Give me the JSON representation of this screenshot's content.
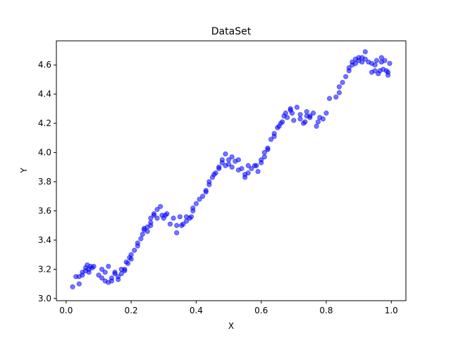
{
  "chart_data": {
    "type": "scatter",
    "title": "DataSet",
    "xlabel": "X",
    "ylabel": "Y",
    "xlim": [
      -0.03,
      1.045
    ],
    "ylim": [
      2.985,
      4.765
    ],
    "x_ticks": [
      "0.0",
      "0.2",
      "0.4",
      "0.6",
      "0.8",
      "1.0"
    ],
    "y_ticks": [
      "3.0",
      "3.2",
      "3.4",
      "3.6",
      "3.8",
      "4.0",
      "4.2",
      "4.4",
      "4.6"
    ],
    "grid": false,
    "legend": "none",
    "marker_color": "#0000ff",
    "marker_alpha": 0.55,
    "series": [
      {
        "points": [
          [
            0.02,
            3.08
          ],
          [
            0.03,
            3.15
          ],
          [
            0.04,
            3.1
          ],
          [
            0.04,
            3.15
          ],
          [
            0.05,
            3.16
          ],
          [
            0.05,
            3.18
          ],
          [
            0.06,
            3.19
          ],
          [
            0.06,
            3.21
          ],
          [
            0.065,
            3.23
          ],
          [
            0.07,
            3.18
          ],
          [
            0.07,
            3.2
          ],
          [
            0.075,
            3.22
          ],
          [
            0.08,
            3.21
          ],
          [
            0.085,
            3.22
          ],
          [
            0.1,
            3.16
          ],
          [
            0.11,
            3.14
          ],
          [
            0.11,
            3.2
          ],
          [
            0.12,
            3.12
          ],
          [
            0.12,
            3.18
          ],
          [
            0.13,
            3.22
          ],
          [
            0.13,
            3.11
          ],
          [
            0.14,
            3.12
          ],
          [
            0.14,
            3.14
          ],
          [
            0.15,
            3.17
          ],
          [
            0.15,
            3.18
          ],
          [
            0.16,
            3.13
          ],
          [
            0.16,
            3.15
          ],
          [
            0.17,
            3.17
          ],
          [
            0.17,
            3.2
          ],
          [
            0.18,
            3.19
          ],
          [
            0.18,
            3.2
          ],
          [
            0.185,
            3.25
          ],
          [
            0.19,
            3.24
          ],
          [
            0.195,
            3.28
          ],
          [
            0.2,
            3.27
          ],
          [
            0.2,
            3.3
          ],
          [
            0.21,
            3.33
          ],
          [
            0.22,
            3.36
          ],
          [
            0.22,
            3.38
          ],
          [
            0.23,
            3.41
          ],
          [
            0.235,
            3.44
          ],
          [
            0.24,
            3.47
          ],
          [
            0.24,
            3.48
          ],
          [
            0.25,
            3.46
          ],
          [
            0.25,
            3.49
          ],
          [
            0.26,
            3.5
          ],
          [
            0.26,
            3.52
          ],
          [
            0.26,
            3.55
          ],
          [
            0.27,
            3.58
          ],
          [
            0.27,
            3.57
          ],
          [
            0.28,
            3.55
          ],
          [
            0.28,
            3.61
          ],
          [
            0.29,
            3.63
          ],
          [
            0.295,
            3.57
          ],
          [
            0.3,
            3.55
          ],
          [
            0.305,
            3.57
          ],
          [
            0.31,
            3.58
          ],
          [
            0.32,
            3.51
          ],
          [
            0.33,
            3.55
          ],
          [
            0.34,
            3.45
          ],
          [
            0.34,
            3.5
          ],
          [
            0.35,
            3.56
          ],
          [
            0.355,
            3.5
          ],
          [
            0.36,
            3.51
          ],
          [
            0.37,
            3.53
          ],
          [
            0.37,
            3.56
          ],
          [
            0.38,
            3.55
          ],
          [
            0.385,
            3.56
          ],
          [
            0.39,
            3.6
          ],
          [
            0.39,
            3.62
          ],
          [
            0.4,
            3.65
          ],
          [
            0.41,
            3.68
          ],
          [
            0.42,
            3.7
          ],
          [
            0.43,
            3.73
          ],
          [
            0.43,
            3.74
          ],
          [
            0.44,
            3.78
          ],
          [
            0.44,
            3.8
          ],
          [
            0.45,
            3.83
          ],
          [
            0.455,
            3.85
          ],
          [
            0.46,
            3.86
          ],
          [
            0.47,
            3.89
          ],
          [
            0.47,
            3.9
          ],
          [
            0.48,
            3.93
          ],
          [
            0.48,
            3.95
          ],
          [
            0.49,
            3.91
          ],
          [
            0.49,
            3.99
          ],
          [
            0.5,
            3.95
          ],
          [
            0.5,
            3.92
          ],
          [
            0.51,
            3.9
          ],
          [
            0.51,
            3.97
          ],
          [
            0.52,
            3.94
          ],
          [
            0.53,
            3.88
          ],
          [
            0.53,
            3.95
          ],
          [
            0.54,
            3.89
          ],
          [
            0.55,
            3.85
          ],
          [
            0.55,
            3.83
          ],
          [
            0.56,
            3.86
          ],
          [
            0.56,
            3.91
          ],
          [
            0.57,
            3.89
          ],
          [
            0.58,
            3.91
          ],
          [
            0.585,
            3.91
          ],
          [
            0.59,
            3.87
          ],
          [
            0.6,
            3.95
          ],
          [
            0.6,
            3.93
          ],
          [
            0.61,
            3.97
          ],
          [
            0.61,
            4.0
          ],
          [
            0.62,
            4.02
          ],
          [
            0.62,
            4.03
          ],
          [
            0.63,
            4.09
          ],
          [
            0.64,
            4.11
          ],
          [
            0.64,
            4.13
          ],
          [
            0.65,
            4.17
          ],
          [
            0.655,
            4.18
          ],
          [
            0.66,
            4.2
          ],
          [
            0.665,
            4.21
          ],
          [
            0.67,
            4.25
          ],
          [
            0.675,
            4.27
          ],
          [
            0.68,
            4.24
          ],
          [
            0.69,
            4.29
          ],
          [
            0.69,
            4.3
          ],
          [
            0.695,
            4.27
          ],
          [
            0.7,
            4.22
          ],
          [
            0.71,
            4.31
          ],
          [
            0.72,
            4.26
          ],
          [
            0.72,
            4.23
          ],
          [
            0.73,
            4.2
          ],
          [
            0.735,
            4.21
          ],
          [
            0.74,
            4.25
          ],
          [
            0.74,
            4.28
          ],
          [
            0.75,
            4.24
          ],
          [
            0.75,
            4.25
          ],
          [
            0.76,
            4.27
          ],
          [
            0.77,
            4.18
          ],
          [
            0.775,
            4.21
          ],
          [
            0.78,
            4.24
          ],
          [
            0.79,
            4.23
          ],
          [
            0.8,
            4.27
          ],
          [
            0.81,
            4.37
          ],
          [
            0.83,
            4.38
          ],
          [
            0.84,
            4.41
          ],
          [
            0.84,
            4.45
          ],
          [
            0.85,
            4.48
          ],
          [
            0.86,
            4.52
          ],
          [
            0.87,
            4.56
          ],
          [
            0.87,
            4.58
          ],
          [
            0.88,
            4.6
          ],
          [
            0.88,
            4.62
          ],
          [
            0.89,
            4.64
          ],
          [
            0.89,
            4.61
          ],
          [
            0.9,
            4.63
          ],
          [
            0.9,
            4.65
          ],
          [
            0.91,
            4.62
          ],
          [
            0.91,
            4.65
          ],
          [
            0.92,
            4.69
          ],
          [
            0.92,
            4.64
          ],
          [
            0.93,
            4.62
          ],
          [
            0.94,
            4.61
          ],
          [
            0.94,
            4.55
          ],
          [
            0.95,
            4.56
          ],
          [
            0.95,
            4.6
          ],
          [
            0.955,
            4.63
          ],
          [
            0.96,
            4.54
          ],
          [
            0.965,
            4.56
          ],
          [
            0.97,
            4.62
          ],
          [
            0.97,
            4.65
          ],
          [
            0.975,
            4.57
          ],
          [
            0.98,
            4.63
          ],
          [
            0.985,
            4.56
          ],
          [
            0.99,
            4.53
          ],
          [
            0.99,
            4.55
          ],
          [
            0.995,
            4.61
          ]
        ]
      }
    ]
  }
}
